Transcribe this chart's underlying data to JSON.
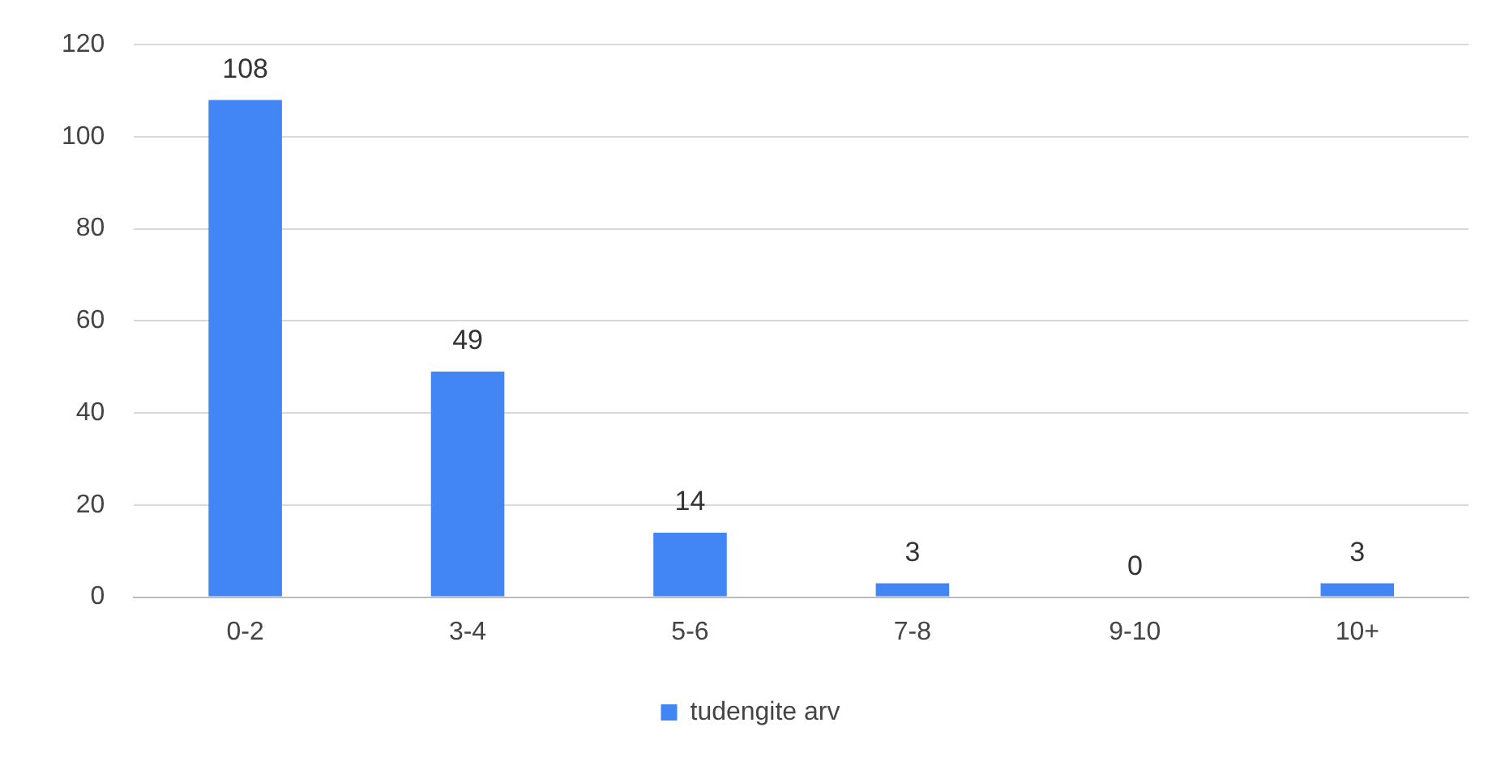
{
  "chart_data": {
    "type": "bar",
    "categories": [
      "0-2",
      "3-4",
      "5-6",
      "7-8",
      "9-10",
      "10+"
    ],
    "series": [
      {
        "name": "tudengite arv",
        "color": "#4285f4",
        "values": [
          108,
          49,
          14,
          3,
          0,
          3
        ]
      }
    ],
    "ylim": [
      0,
      120
    ],
    "yticks": [
      0,
      20,
      40,
      60,
      80,
      100,
      120
    ],
    "grid": "y",
    "legend": "bottom",
    "data_labels": true
  }
}
